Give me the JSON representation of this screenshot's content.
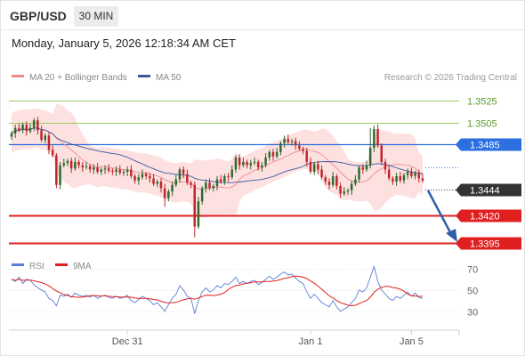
{
  "header": {
    "symbol": "GBP/USD",
    "timeframe": "30 MIN"
  },
  "datetime": "Monday, January 5, 2026 12:18:34 AM CET",
  "legend": {
    "ma20_bb": "MA 20 + Bollinger Bands",
    "ma50": "MA 50",
    "ma20_color": "#f08a8a",
    "ma50_color": "#3a5a9b",
    "copyright": "Research © 2026 Trading Central"
  },
  "rsi_legend": {
    "rsi": "RSI",
    "nine_ma": "9MA",
    "rsi_color": "#5b7fd6",
    "nine_ma_color": "#e02020"
  },
  "colors": {
    "bull": "#2f6b2f",
    "bear": "#c0262b",
    "band_fill": "#fde1e1",
    "resistance": "#9ccc65",
    "current_line": "#2b6fe0",
    "support": "#e02020",
    "last_price_bg": "#333333",
    "arrow": "#2f5fa8"
  },
  "levels": [
    {
      "price": "1.3525",
      "type": "resistance"
    },
    {
      "price": "1.3505",
      "type": "resistance"
    },
    {
      "price": "1.3485",
      "type": "current"
    },
    {
      "price": "1.3444",
      "type": "last"
    },
    {
      "price": "1.3420",
      "type": "support"
    },
    {
      "price": "1.3395",
      "type": "support"
    }
  ],
  "x_labels": [
    "Dec 31",
    "Jan 1",
    "Jan 5"
  ],
  "rsi_ticks": [
    "70",
    "50",
    "30"
  ],
  "chart_data": {
    "type": "candlestick",
    "y_range": [
      1.3375,
      1.3545
    ],
    "rsi_range": [
      20,
      80
    ],
    "closes": [
      1.3495,
      1.35,
      1.3498,
      1.3503,
      1.3497,
      1.35,
      1.3507,
      1.3498,
      1.3489,
      1.3493,
      1.348,
      1.3475,
      1.3448,
      1.3466,
      1.3468,
      1.347,
      1.3463,
      1.3469,
      1.3466,
      1.3464,
      1.3465,
      1.3462,
      1.3464,
      1.346,
      1.3462,
      1.3463,
      1.3461,
      1.346,
      1.3462,
      1.3459,
      1.346,
      1.3462,
      1.3456,
      1.3452,
      1.3455,
      1.3458,
      1.3456,
      1.3454,
      1.3449,
      1.3451,
      1.3445,
      1.3436,
      1.3442,
      1.3448,
      1.3453,
      1.3462,
      1.3458,
      1.345,
      1.3448,
      1.341,
      1.3433,
      1.3445,
      1.345,
      1.3445,
      1.3447,
      1.3453,
      1.3451,
      1.3456,
      1.3455,
      1.3462,
      1.3473,
      1.3466,
      1.3469,
      1.3466,
      1.3468,
      1.3469,
      1.3464,
      1.3466,
      1.3473,
      1.3478,
      1.3474,
      1.3478,
      1.3486,
      1.349,
      1.3487,
      1.3488,
      1.3484,
      1.3481,
      1.3479,
      1.3469,
      1.346,
      1.3467,
      1.3462,
      1.3455,
      1.3451,
      1.3448,
      1.3456,
      1.3447,
      1.344,
      1.3442,
      1.3443,
      1.3449,
      1.3453,
      1.3464,
      1.3462,
      1.3466,
      1.3482,
      1.3499,
      1.3484,
      1.3469,
      1.3462,
      1.3454,
      1.3451,
      1.3456,
      1.3452,
      1.3457,
      1.346,
      1.3456,
      1.3459,
      1.3454,
      1.3452
    ],
    "rsi": [
      60,
      58,
      62,
      56,
      60,
      59,
      55,
      52,
      50,
      48,
      42,
      40,
      35,
      45,
      44,
      46,
      43,
      47,
      45,
      44,
      45,
      43,
      45,
      42,
      44,
      45,
      43,
      42,
      44,
      42,
      43,
      45,
      40,
      38,
      41,
      44,
      42,
      40,
      36,
      38,
      34,
      30,
      36,
      42,
      46,
      54,
      50,
      44,
      42,
      28,
      40,
      48,
      52,
      48,
      50,
      54,
      52,
      56,
      55,
      58,
      62,
      56,
      58,
      56,
      58,
      59,
      55,
      57,
      60,
      63,
      60,
      62,
      65,
      67,
      64,
      65,
      61,
      58,
      56,
      48,
      42,
      46,
      42,
      38,
      36,
      34,
      40,
      34,
      30,
      32,
      34,
      38,
      42,
      50,
      48,
      52,
      62,
      72,
      58,
      50,
      46,
      42,
      40,
      44,
      42,
      45,
      48,
      44,
      47,
      43,
      42
    ]
  }
}
